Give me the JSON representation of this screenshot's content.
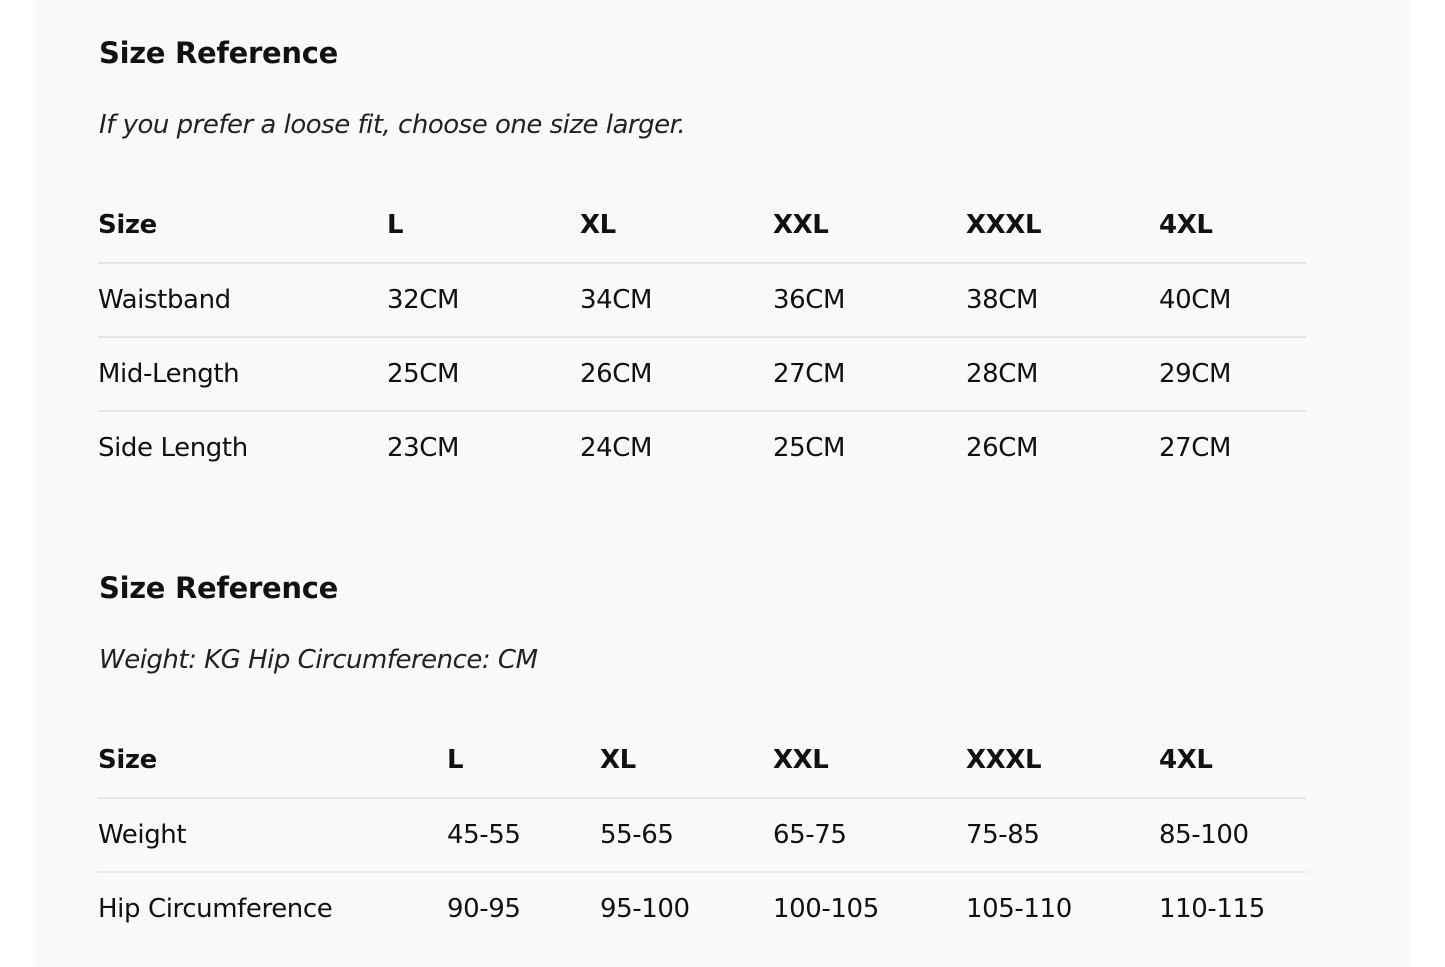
{
  "sections": [
    {
      "title": "Size Reference",
      "subtitle": "If you prefer a loose fit, choose one size larger.",
      "header": [
        "Size",
        "L",
        "XL",
        "XXL",
        "XXXL",
        "4XL"
      ],
      "rows": [
        [
          "Waistband",
          "32CM",
          "34CM",
          "36CM",
          "38CM",
          "40CM"
        ],
        [
          "Mid-Length",
          "25CM",
          "26CM",
          "27CM",
          "28CM",
          "29CM"
        ],
        [
          "Side Length",
          "23CM",
          "24CM",
          "25CM",
          "26CM",
          "27CM"
        ]
      ]
    },
    {
      "title": "Size Reference",
      "subtitle": "Weight: KG Hip Circumference: CM",
      "header": [
        "Size",
        "L",
        "XL",
        "XXL",
        "XXXL",
        "4XL"
      ],
      "rows": [
        [
          "Weight",
          "45-55",
          "55-65",
          "65-75",
          "75-85",
          "85-100"
        ],
        [
          "Hip Circumference",
          "90-95",
          "95-100",
          "100-105",
          "105-110",
          "110-115"
        ]
      ]
    }
  ]
}
